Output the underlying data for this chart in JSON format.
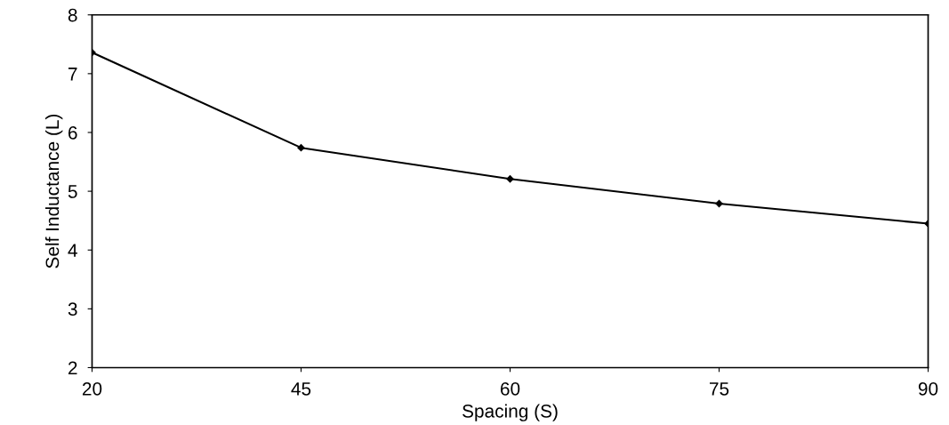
{
  "chart_data": {
    "type": "line",
    "xlabel": "Spacing (S)",
    "ylabel": "Self Inductance (L)",
    "categories": [
      "20",
      "45",
      "60",
      "75",
      "90"
    ],
    "series": [
      {
        "color": "#000000",
        "values": [
          7.36,
          5.74,
          5.21,
          4.79,
          4.45
        ]
      }
    ],
    "ylim": [
      2,
      8
    ],
    "yticks": [
      2,
      3,
      4,
      5,
      6,
      7,
      8
    ],
    "grid": false,
    "legend": false,
    "marker": "diamond",
    "line_style": "solid"
  }
}
